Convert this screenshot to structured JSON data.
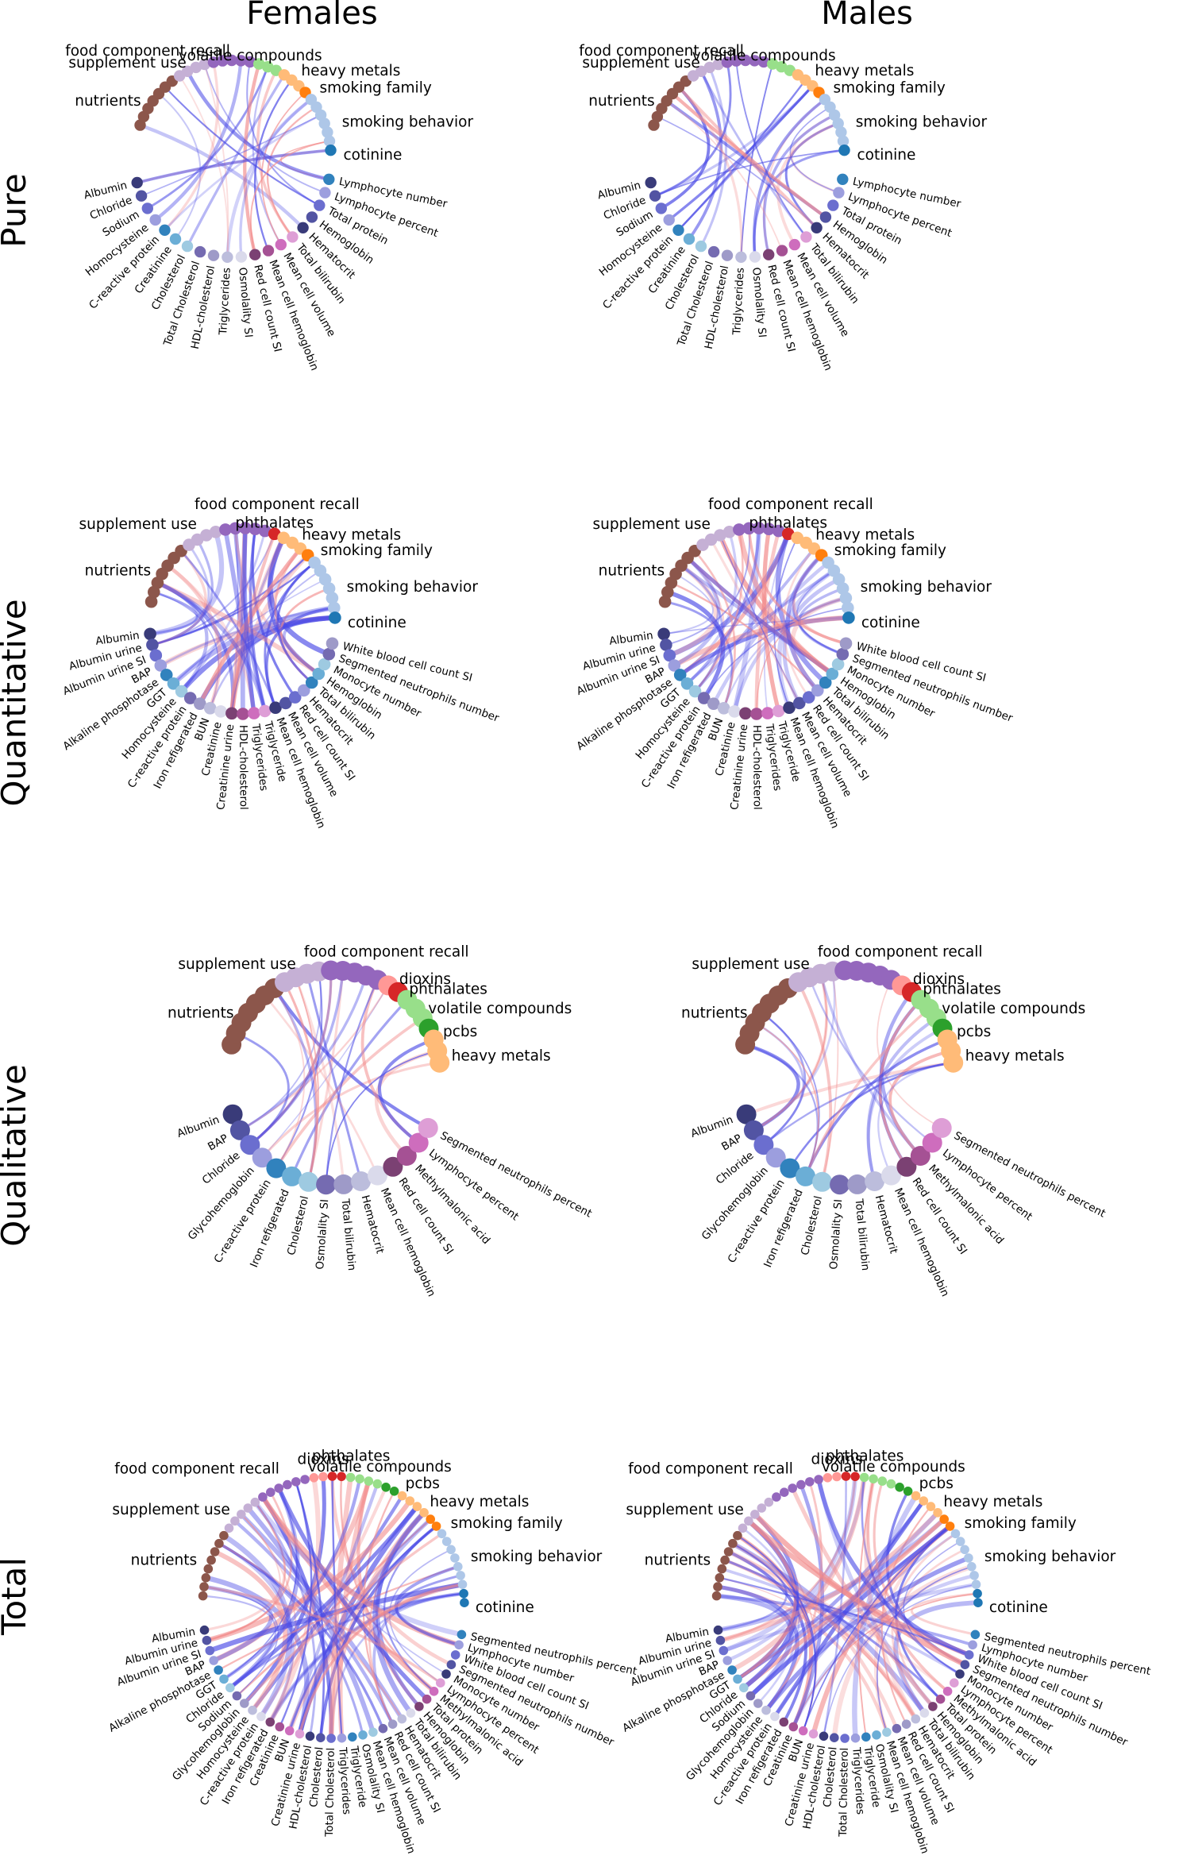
{
  "column_titles": [
    "Females",
    "Males"
  ],
  "row_titles": [
    "Pure",
    "Quantitative",
    "Qualitative",
    "Total"
  ],
  "colors": {
    "positive_edge": "#f28c8c",
    "negative_edge": "#4a4ae6",
    "nutrients": "#8c564b",
    "supplement": "#c5b0d5",
    "food": "#9467bd",
    "volatile": "#98df8a",
    "heavy": "#ffbb78",
    "smoking_family": "#ff7f0e",
    "smoking_behavior": "#aec7e8",
    "cotinine": "#1f77b4",
    "phthalates": "#d62728",
    "dioxins": "#ff9896",
    "pcbs": "#2ca02c"
  },
  "panels": [
    {
      "id": "pure-females",
      "exposure_groups": [
        "nutrients",
        "supplement use",
        "food component recall",
        "volatile compounds",
        "heavy metals",
        "smoking family",
        "smoking behavior",
        "cotinine"
      ],
      "measurements": [
        "Albumin",
        "Chloride",
        "Sodium",
        "Homocysteine",
        "C-reactive protein",
        "Creatinine",
        "Cholesterol",
        "Total Cholesterol",
        "HDL-cholesterol",
        "Triglycerides",
        "Osmolality SI",
        "Red cell count SI",
        "Mean cell hemoglobin",
        "Mean cell volume",
        "Total bilirubin",
        "Hematocrit",
        "Hemoglobin",
        "Total protein",
        "Lymphocyte percent",
        "Lymphocyte number"
      ]
    },
    {
      "id": "pure-males",
      "exposure_groups": [
        "nutrients",
        "supplement use",
        "food component recall",
        "volatile compounds",
        "heavy metals",
        "smoking family",
        "smoking behavior",
        "cotinine"
      ],
      "measurements": [
        "Albumin",
        "Chloride",
        "Sodium",
        "Homocysteine",
        "C-reactive protein",
        "Creatinine",
        "Cholesterol",
        "Total Cholesterol",
        "HDL-cholesterol",
        "Triglycerides",
        "Osmolality SI",
        "Red cell count SI",
        "Mean cell hemoglobin",
        "Mean cell volume",
        "Total bilirubin",
        "Hematocrit",
        "Hemoglobin",
        "Total protein",
        "Lymphocyte percent",
        "Lymphocyte number"
      ]
    },
    {
      "id": "quant-females",
      "exposure_groups": [
        "nutrients",
        "supplement use",
        "food component recall",
        "phthalates",
        "heavy metals",
        "smoking family",
        "smoking behavior",
        "cotinine"
      ],
      "measurements": [
        "Albumin",
        "Albumin urine",
        "Albumin urine SI",
        "BAP",
        "Alkaline phosphotase",
        "GGT",
        "Homocysteine",
        "C-reactive protein",
        "Iron refigerated",
        "BUN",
        "Creatinine",
        "Creatinine urine",
        "HDL-cholesterol",
        "Triglycerides",
        "Triglyceride",
        "Mean cell hemoglobin",
        "Mean cell volume",
        "Red cell count SI",
        "Hematocrit",
        "Total bilirubin",
        "Hemoglobin",
        "Monocyte number",
        "Segmented neutrophils number",
        "White blood cell count SI"
      ]
    },
    {
      "id": "quant-males",
      "exposure_groups": [
        "nutrients",
        "supplement use",
        "food component recall",
        "phthalates",
        "heavy metals",
        "smoking family",
        "smoking behavior",
        "cotinine"
      ],
      "measurements": [
        "Albumin",
        "Albumin urine",
        "Albumin urine SI",
        "BAP",
        "Alkaline phosphotase",
        "GGT",
        "Homocysteine",
        "C-reactive protein",
        "Iron refigerated",
        "BUN",
        "Creatinine",
        "Creatinine urine",
        "HDL-cholesterol",
        "Triglycerides",
        "Triglyceride",
        "Mean cell hemoglobin",
        "Mean cell volume",
        "Red cell count SI",
        "Hematocrit",
        "Total bilirubin",
        "Hemoglobin",
        "Monocyte number",
        "Segmented neutrophils number",
        "White blood cell count SI"
      ]
    },
    {
      "id": "qual-females",
      "exposure_groups": [
        "nutrients",
        "supplement use",
        "food component recall",
        "dioxins",
        "phthalates",
        "volatile compounds",
        "pcbs",
        "heavy metals"
      ],
      "measurements": [
        "Albumin",
        "BAP",
        "Chloride",
        "Glycohemoglobin",
        "C-reactive protein",
        "Iron refigerated",
        "Cholesterol",
        "Osmolality SI",
        "Total bilirubin",
        "Hematocrit",
        "Mean cell hemoglobin",
        "Red cell count SI",
        "Methylmalonic acid",
        "Lymphocyte percent",
        "Segmented neutrophils percent"
      ]
    },
    {
      "id": "qual-males",
      "exposure_groups": [
        "nutrients",
        "supplement use",
        "food component recall",
        "dioxins",
        "phthalates",
        "volatile compounds",
        "pcbs",
        "heavy metals"
      ],
      "measurements": [
        "Albumin",
        "BAP",
        "Chloride",
        "Glycohemoglobin",
        "C-reactive protein",
        "Iron refigerated",
        "Cholesterol",
        "Osmolality SI",
        "Total bilirubin",
        "Hematocrit",
        "Mean cell hemoglobin",
        "Red cell count SI",
        "Methylmalonic acid",
        "Lymphocyte percent",
        "Segmented neutrophils percent"
      ]
    },
    {
      "id": "total-females",
      "exposure_groups": [
        "nutrients",
        "supplement use",
        "food component recall",
        "dioxins",
        "phthalates",
        "volatile compounds",
        "pcbs",
        "heavy metals",
        "smoking family",
        "smoking behavior",
        "cotinine"
      ],
      "measurements": [
        "Albumin",
        "Albumin urine",
        "Albumin urine SI",
        "BAP",
        "Alkaline phosphotase",
        "GGT",
        "Chloride",
        "Sodium",
        "Glycohemoglobin",
        "Homocysteine",
        "C-reactive protein",
        "Iron refigerated",
        "Creatinine",
        "BUN",
        "Creatinine urine",
        "HDL-cholesterol",
        "Cholesterol",
        "Total Cholesterol",
        "Triglycerides",
        "Triglyceride",
        "Osmolality SI",
        "Mean cell hemoglobin",
        "Mean cell volume",
        "Red cell count SI",
        "Hematocrit",
        "Total bilirubin",
        "Hemoglobin",
        "Total protein",
        "Methylmalonic acid",
        "Lymphocyte percent",
        "Monocyte number",
        "Segmented neutrophils number",
        "White blood cell count SI",
        "Lymphocyte number",
        "Segmented neutrophils percent"
      ]
    },
    {
      "id": "total-males",
      "exposure_groups": [
        "nutrients",
        "supplement use",
        "food component recall",
        "dioxins",
        "phthalates",
        "volatile compounds",
        "pcbs",
        "heavy metals",
        "smoking family",
        "smoking behavior",
        "cotinine"
      ],
      "measurements": [
        "Albumin",
        "Albumin urine",
        "Albumin urine SI",
        "BAP",
        "Alkaline phosphotase",
        "GGT",
        "Chloride",
        "Sodium",
        "Glycohemoglobin",
        "Homocysteine",
        "C-reactive protein",
        "Iron refigerated",
        "Creatinine",
        "BUN",
        "Creatinine urine",
        "HDL-cholesterol",
        "Cholesterol",
        "Total Cholesterol",
        "Triglycerides",
        "Triglyceride",
        "Osmolality SI",
        "Mean cell hemoglobin",
        "Mean cell volume",
        "Red cell count SI",
        "Hematocrit",
        "Total bilirubin",
        "Hemoglobin",
        "Total protein",
        "Methylmalonic acid",
        "Lymphocyte percent",
        "Monocyte number",
        "Segmented neutrophils number",
        "White blood cell count SI",
        "Lymphocyte number",
        "Segmented neutrophils percent"
      ]
    }
  ]
}
